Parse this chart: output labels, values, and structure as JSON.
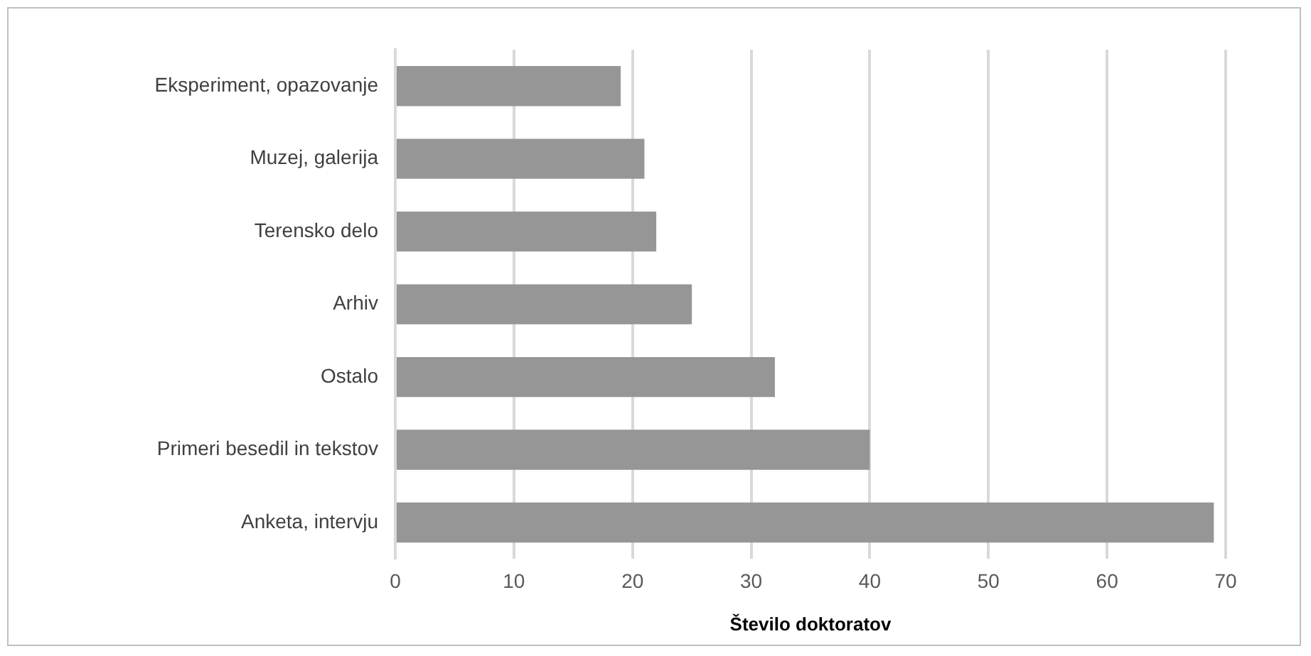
{
  "chart_data": {
    "type": "bar",
    "orientation": "horizontal",
    "xlabel": "Število doktoratov",
    "categories": [
      "Eksperiment, opazovanje",
      "Muzej, galerija",
      "Terensko delo",
      "Arhiv",
      "Ostalo",
      "Primeri besedil in tekstov",
      "Anketa, intervju"
    ],
    "values": [
      19,
      21,
      22,
      25,
      32,
      40,
      69
    ],
    "color": "#969696",
    "xlim": [
      0,
      70
    ],
    "xticks": [
      0,
      10,
      20,
      30,
      40,
      50,
      60,
      70
    ],
    "grid": "x",
    "legend": false
  }
}
